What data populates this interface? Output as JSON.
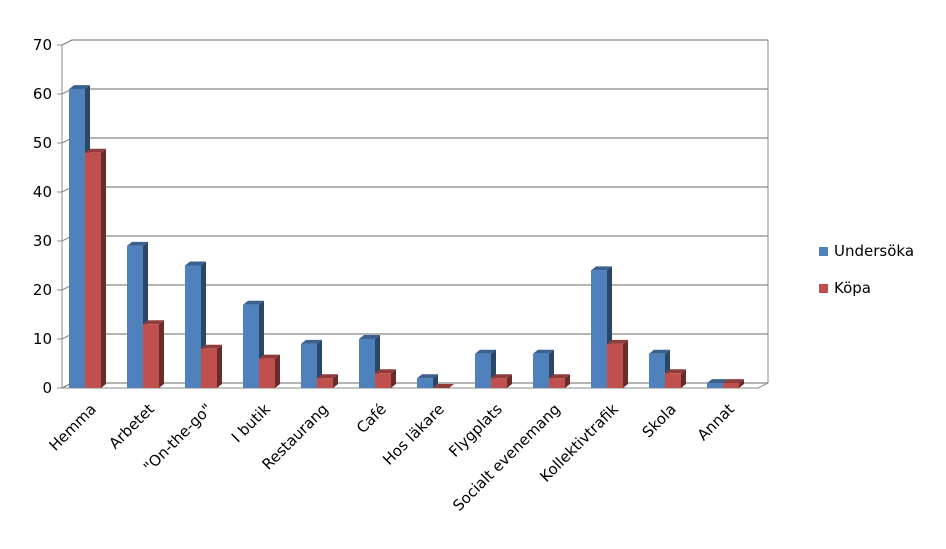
{
  "chart_data": {
    "type": "bar",
    "categories": [
      "Hemma",
      "Arbetet",
      "\"On-the-go\"",
      "I butik",
      "Restaurang",
      "Café",
      "Hos läkare",
      "Flygplats",
      "Socialt evenemang",
      "Kollektivtrafik",
      "Skola",
      "Annat"
    ],
    "series": [
      {
        "name": "Undersöka",
        "values": [
          61,
          29,
          25,
          17,
          9,
          10,
          2,
          7,
          7,
          24,
          7,
          1
        ],
        "color": "#4F81BD"
      },
      {
        "name": "Köpa",
        "values": [
          48,
          13,
          8,
          6,
          2,
          3,
          0,
          2,
          2,
          9,
          3,
          1
        ],
        "color": "#C0504D"
      }
    ],
    "yticks": [
      "0",
      "10",
      "20",
      "30",
      "40",
      "50",
      "60",
      "70"
    ],
    "ylim": [
      0,
      70
    ],
    "grid": true,
    "legend_position": "right",
    "style": "3d-clustered-column"
  }
}
